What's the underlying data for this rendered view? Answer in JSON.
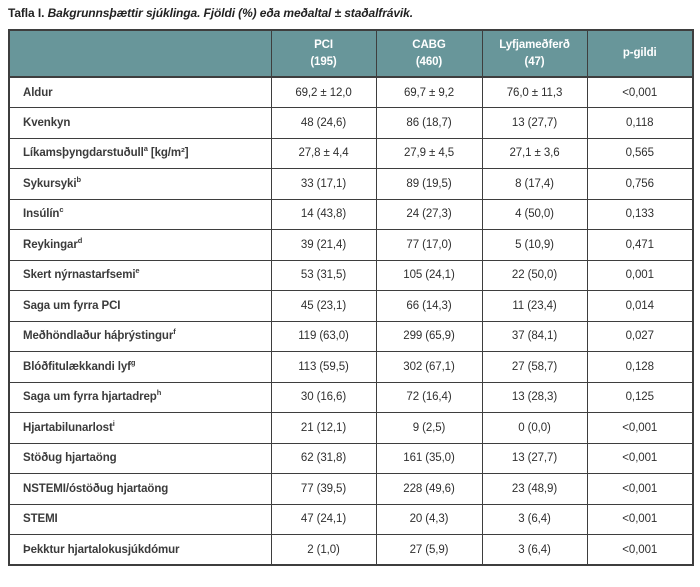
{
  "page": {
    "title_prefix": "Tafla I.",
    "title_italic": "Bakgrunnsþættir sjúklinga. Fjöldi (%) eða meðaltal ± staðalfrávik."
  },
  "colors": {
    "header_bg": "#68969a",
    "header_text": "#ffffff",
    "border": "#3e3e3e",
    "label_text": "#3b3b3b",
    "value_text": "#2f2f2f"
  },
  "table": {
    "header": [
      {
        "line1": "",
        "line2": ""
      },
      {
        "line1": "PCI",
        "line2": "(195)"
      },
      {
        "line1": "CABG",
        "line2": "(460)"
      },
      {
        "line1": "Lyfjameðferð",
        "line2": "(47)"
      },
      {
        "line1": "p-gildi",
        "line2": ""
      }
    ],
    "rows": [
      {
        "label": "Aldur",
        "sup": "",
        "suffix": "",
        "values": [
          "69,2 ± 12,0",
          "69,7 ± 9,2",
          "76,0 ± 11,3",
          "<0,001"
        ]
      },
      {
        "label": "Kvenkyn",
        "sup": "",
        "suffix": "",
        "values": [
          "48 (24,6)",
          "86 (18,7)",
          "13 (27,7)",
          "0,118"
        ]
      },
      {
        "label": "Líkamsþyngdarstuðull",
        "sup": "a",
        "suffix": " [kg/m²]",
        "values": [
          "27,8 ± 4,4",
          "27,9 ± 4,5",
          "27,1 ± 3,6",
          "0,565"
        ]
      },
      {
        "label": "Sykursyki",
        "sup": "b",
        "suffix": "",
        "values": [
          "33 (17,1)",
          "89 (19,5)",
          "8 (17,4)",
          "0,756"
        ]
      },
      {
        "label": "Insúlín",
        "sup": "c",
        "suffix": "",
        "values": [
          "14 (43,8)",
          "24 (27,3)",
          "4 (50,0)",
          "0,133"
        ]
      },
      {
        "label": "Reykingar",
        "sup": "d",
        "suffix": "",
        "values": [
          "39 (21,4)",
          "77 (17,0)",
          "5 (10,9)",
          "0,471"
        ]
      },
      {
        "label": "Skert nýrnastarfsemi",
        "sup": "e",
        "suffix": "",
        "values": [
          "53 (31,5)",
          "105 (24,1)",
          "22 (50,0)",
          "0,001"
        ]
      },
      {
        "label": "Saga um fyrra PCI",
        "sup": "",
        "suffix": "",
        "values": [
          "45 (23,1)",
          "66 (14,3)",
          "11 (23,4)",
          "0,014"
        ]
      },
      {
        "label": "Meðhöndlaður háþrýstingur",
        "sup": "f",
        "suffix": "",
        "values": [
          "119 (63,0)",
          "299 (65,9)",
          "37 (84,1)",
          "0,027"
        ]
      },
      {
        "label": "Blóðfitulækkandi lyf",
        "sup": "g",
        "suffix": "",
        "values": [
          "113 (59,5)",
          "302 (67,1)",
          "27 (58,7)",
          "0,128"
        ]
      },
      {
        "label": "Saga um fyrra hjartadrep",
        "sup": "h",
        "suffix": "",
        "values": [
          "30 (16,6)",
          "72 (16,4)",
          "13 (28,3)",
          "0,125"
        ]
      },
      {
        "label": "Hjartabilunarlost",
        "sup": "i",
        "suffix": "",
        "values": [
          "21 (12,1)",
          "9 (2,5)",
          "0 (0,0)",
          "<0,001"
        ]
      },
      {
        "label": "Stöðug hjartaöng",
        "sup": "",
        "suffix": "",
        "values": [
          "62 (31,8)",
          "161 (35,0)",
          "13 (27,7)",
          "<0,001"
        ]
      },
      {
        "label": "NSTEMI/óstöðug hjartaöng",
        "sup": "",
        "suffix": "",
        "values": [
          "77 (39,5)",
          "228 (49,6)",
          "23 (48,9)",
          "<0,001"
        ]
      },
      {
        "label": "STEMI",
        "sup": "",
        "suffix": "",
        "values": [
          "47 (24,1)",
          "20 (4,3)",
          "3 (6,4)",
          "<0,001"
        ]
      },
      {
        "label": "Þekktur hjartalokusjúkdómur",
        "sup": "",
        "suffix": "",
        "values": [
          "2 (1,0)",
          "27 (5,9)",
          "3 (6,4)",
          "<0,001"
        ]
      }
    ]
  }
}
